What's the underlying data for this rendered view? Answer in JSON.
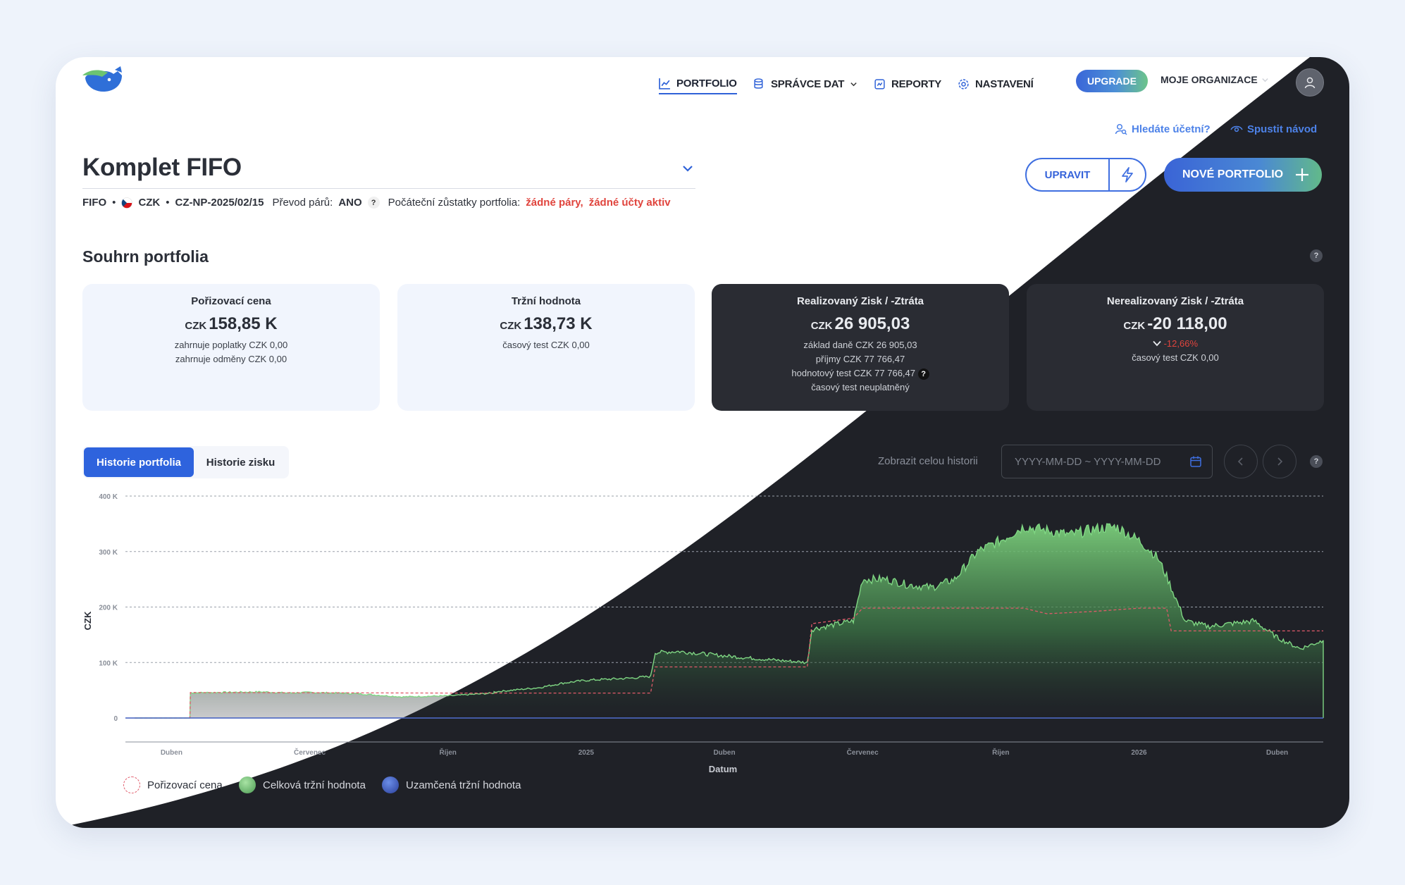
{
  "nav": {
    "portfolio": "PORTFOLIO",
    "data_manager": "SPRÁVCE DAT",
    "reports": "REPORTY",
    "settings": "NASTAVENÍ",
    "upgrade": "UPGRADE",
    "org": "MOJE ORGANIZACE"
  },
  "links": {
    "accountant": "Hledáte účetní?",
    "tutorial": "Spustit návod"
  },
  "header": {
    "title": "Komplet FIFO",
    "method": "FIFO",
    "currency": "CZK",
    "code": "CZ-NP-2025/02/15",
    "pair_transfer_label": "Převod párů:",
    "pair_transfer_value": "ANO",
    "help": "?",
    "initial_label": "Počáteční zůstatky portfolia:",
    "no_pairs": "žádné páry,",
    "no_accounts": "žádné účty aktiv",
    "bullet": "•"
  },
  "actions": {
    "edit": "UPRAVIT",
    "new_portfolio": "NOVÉ PORTFOLIO"
  },
  "summary": {
    "title": "Souhrn portfolia",
    "help": "?",
    "cards": [
      {
        "title": "Pořizovací cena",
        "currency": "CZK",
        "value": "158,85 K",
        "lines": [
          "zahrnuje poplatky CZK 0,00",
          "zahrnuje odměny CZK 0,00"
        ]
      },
      {
        "title": "Tržní hodnota",
        "currency": "CZK",
        "value": "138,73 K",
        "lines": [
          "časový test CZK 0,00"
        ]
      },
      {
        "title": "Realizovaný Zisk / -Ztráta",
        "currency": "CZK",
        "value": "26 905,03",
        "lines": [
          "základ daně CZK 26 905,03",
          "příjmy CZK 77 766,47",
          "hodnotový test CZK 77 766,47",
          "časový test neuplatněný"
        ],
        "help": "?"
      },
      {
        "title": "Nerealizovaný Zisk / -Ztráta",
        "currency": "CZK",
        "value": "-20 118,00",
        "change": "-12,66%",
        "lines": [
          "časový test CZK 0,00"
        ]
      }
    ]
  },
  "history": {
    "tab_portfolio": "Historie portfolia",
    "tab_profit": "Historie zisku",
    "show_all": "Zobrazit celou historii",
    "date_placeholder": "YYYY-MM-DD ~ YYYY-MM-DD",
    "help": "?"
  },
  "colors": {
    "accent": "#2e63dd",
    "dark_bg": "#1f2127",
    "market": "#6cc471",
    "cost": "#e05a6a",
    "negative": "#e0443d"
  },
  "chart_data": {
    "type": "area",
    "ylabel": "CZK",
    "xlabel": "Datum",
    "ylim": [
      0,
      400000
    ],
    "y_ticks": [
      "0",
      "100 K",
      "200 K",
      "300 K",
      "400 K"
    ],
    "x_ticks": [
      "Duben",
      "Červenec",
      "Říjen",
      "2025",
      "Duben",
      "Červenec",
      "Říjen",
      "2026",
      "Duben"
    ],
    "x_range_months": [
      0,
      26
    ],
    "series": [
      {
        "name": "Celková tržní hodnota",
        "x": [
          0.2,
          1.4,
          1.41,
          2,
          3,
          3.5,
          4,
          5,
          6,
          7,
          8,
          8,
          9,
          9.5,
          10,
          10.5,
          11,
          11.4,
          11.5,
          12,
          13,
          14,
          14.8,
          14.9,
          15.8,
          16,
          16.5,
          17,
          17.5,
          18,
          18.5,
          19,
          19.5,
          20,
          20.5,
          21,
          21.5,
          22,
          22.4,
          22.6,
          23,
          23.5,
          24,
          24.5,
          25,
          25.5,
          26
        ],
        "y": [
          0,
          0,
          45000,
          46000,
          47000,
          45000,
          46000,
          44000,
          38000,
          40000,
          45000,
          47000,
          55000,
          63000,
          68000,
          70000,
          72000,
          75000,
          118000,
          120000,
          112000,
          105000,
          100000,
          160000,
          175000,
          250000,
          250000,
          240000,
          235000,
          250000,
          300000,
          320000,
          345000,
          338000,
          330000,
          340000,
          345000,
          320000,
          290000,
          255000,
          175000,
          165000,
          170000,
          175000,
          145000,
          125000,
          140000
        ]
      },
      {
        "name": "Pořizovací cena",
        "x": [
          0.2,
          1.4,
          1.41,
          7,
          8,
          11.4,
          11.5,
          14.8,
          14.9,
          15.8,
          16,
          18,
          19.5,
          20,
          21,
          22,
          22.6,
          22.7,
          26
        ],
        "y": [
          0,
          0,
          46000,
          45000,
          45000,
          45000,
          92000,
          92000,
          170000,
          180000,
          198000,
          198000,
          198000,
          188000,
          192000,
          198000,
          198000,
          157000,
          157000
        ]
      },
      {
        "name": "Uzamčená tržní hodnota",
        "x": [
          0,
          26
        ],
        "y": [
          0,
          0
        ]
      }
    ],
    "legend": [
      {
        "name": "Pořizovací cena"
      },
      {
        "name": "Celková tržní hodnota"
      },
      {
        "name": "Uzamčená tržní hodnota"
      }
    ],
    "legend_position": "bottom-left",
    "grid": true
  }
}
